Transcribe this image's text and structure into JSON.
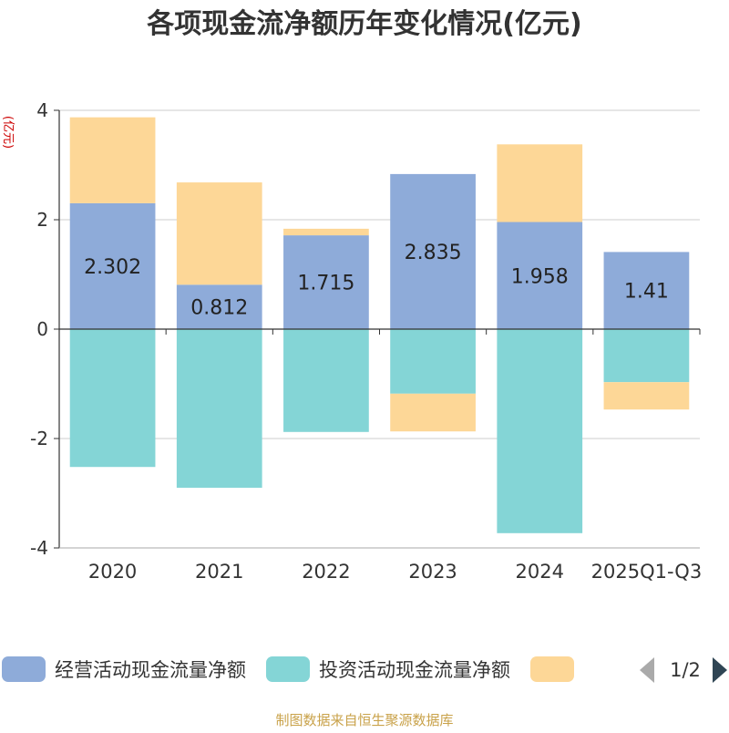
{
  "chart_data": {
    "type": "bar",
    "stacked": true,
    "title": "各项现金流净额历年变化情况(亿元)",
    "ylabel": "(亿元)",
    "categories": [
      "2020",
      "2021",
      "2022",
      "2023",
      "2024",
      "2025Q1-Q3"
    ],
    "ylim": [
      -4,
      4
    ],
    "yticks": [
      -4,
      -2,
      0,
      2,
      4
    ],
    "grid": true,
    "series": [
      {
        "name": "经营活动现金流量净额",
        "color": "#8eabd9",
        "values": [
          2.302,
          0.812,
          1.715,
          2.835,
          1.958,
          1.41
        ],
        "data_labels": [
          "2.302",
          "0.812",
          "1.715",
          "2.835",
          "1.958",
          "1.41"
        ]
      },
      {
        "name": "投资活动现金流量净额",
        "color": "#84d5d6",
        "values": [
          -2.52,
          -2.9,
          -1.88,
          -1.18,
          -3.73,
          -0.97
        ]
      },
      {
        "name": "",
        "color": "#fdd797",
        "values": [
          1.57,
          1.87,
          0.12,
          -0.69,
          1.42,
          -0.5
        ]
      }
    ],
    "legend": {
      "placement": "bottom",
      "page_indicator": "1/2"
    },
    "source_note": "制图数据来自恒生聚源数据库"
  }
}
